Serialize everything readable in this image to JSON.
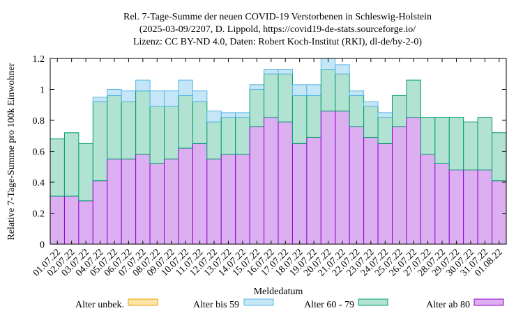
{
  "chart_data": {
    "type": "bar",
    "stacked": true,
    "title_lines": [
      "Rel. 7-Tage-Summe der neuen COVID-19 Verstorbenen in Schleswig-Holstein",
      "(2025-03-09/2207, D. Lippold, https://covid19-de-stats.sourceforge.io/",
      "Lizenz: CC BY-ND 4.0, Daten: Robert Koch-Institut (RKI), dl-de/by-2-0)"
    ],
    "xlabel": "Meldedatum",
    "ylabel": "Relative 7-Tage-Summe pro 100k Einwohner",
    "ylim": [
      0,
      1.2
    ],
    "yticks": [
      "0",
      "0.2",
      "0.4",
      "0.6",
      "0.8",
      "1",
      "1.2"
    ],
    "grid": false,
    "legend_position": "bottom",
    "categories": [
      "01.07.22",
      "02.07.22",
      "03.07.22",
      "04.07.22",
      "05.07.22",
      "06.07.22",
      "07.07.22",
      "08.07.22",
      "09.07.22",
      "10.07.22",
      "11.07.22",
      "12.07.22",
      "13.07.22",
      "14.07.22",
      "15.07.22",
      "16.07.22",
      "17.07.22",
      "18.07.22",
      "19.07.22",
      "20.07.22",
      "21.07.22",
      "22.07.22",
      "23.07.22",
      "24.07.22",
      "25.07.22",
      "26.07.22",
      "27.07.22",
      "28.07.22",
      "29.07.22",
      "30.07.22",
      "31.07.22",
      "01.08.22"
    ],
    "series": [
      {
        "name": "Alter ab 80",
        "fill": "#dcb0f0",
        "stroke": "#9400d3",
        "values": [
          0.31,
          0.31,
          0.28,
          0.41,
          0.55,
          0.55,
          0.58,
          0.52,
          0.55,
          0.62,
          0.65,
          0.55,
          0.58,
          0.58,
          0.76,
          0.82,
          0.79,
          0.65,
          0.69,
          0.86,
          0.86,
          0.76,
          0.69,
          0.65,
          0.76,
          0.82,
          0.58,
          0.52,
          0.48,
          0.48,
          0.48,
          0.41
        ]
      },
      {
        "name": "Alter 60 - 79",
        "fill": "#b2e2d1",
        "stroke": "#009e73",
        "values": [
          0.37,
          0.41,
          0.37,
          0.51,
          0.41,
          0.37,
          0.41,
          0.37,
          0.34,
          0.34,
          0.27,
          0.24,
          0.24,
          0.24,
          0.24,
          0.28,
          0.31,
          0.31,
          0.27,
          0.27,
          0.24,
          0.2,
          0.2,
          0.17,
          0.2,
          0.24,
          0.24,
          0.3,
          0.34,
          0.31,
          0.34,
          0.31
        ]
      },
      {
        "name": "Alter bis 59",
        "fill": "#c5e6f6",
        "stroke": "#56b4e9",
        "values": [
          0,
          0,
          0,
          0.03,
          0.04,
          0.07,
          0.07,
          0.1,
          0.1,
          0.1,
          0.07,
          0.07,
          0.03,
          0.03,
          0.03,
          0.03,
          0.03,
          0.07,
          0.07,
          0.07,
          0.06,
          0.03,
          0.03,
          0.03,
          0,
          0,
          0,
          0,
          0,
          0,
          0,
          0
        ]
      },
      {
        "name": "Alter unbek.",
        "fill": "#fde3a7",
        "stroke": "#e69f00",
        "values": [
          0,
          0,
          0,
          0,
          0,
          0,
          0,
          0,
          0,
          0,
          0,
          0,
          0,
          0,
          0,
          0,
          0,
          0,
          0,
          0,
          0,
          0,
          0,
          0,
          0,
          0,
          0,
          0,
          0,
          0,
          0,
          0
        ]
      }
    ],
    "legend_order": [
      "Alter unbek.",
      "Alter bis 59",
      "Alter 60 - 79",
      "Alter ab 80"
    ]
  }
}
